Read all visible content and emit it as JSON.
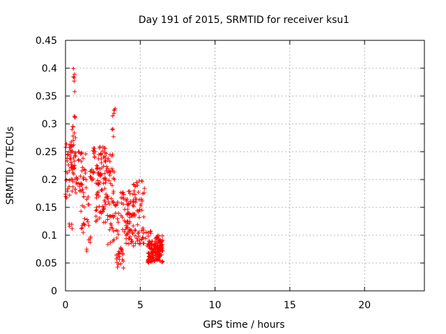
{
  "chart_data": {
    "type": "scatter",
    "title": "Day 191 of 2015, SRMTID for receiver ksu1",
    "xlabel": "GPS time / hours",
    "ylabel": "SRMTID / TECUs",
    "xlim": [
      0,
      24
    ],
    "ylim": [
      0,
      0.45
    ],
    "xticks": [
      0,
      5,
      10,
      15,
      20
    ],
    "yticks": [
      0,
      0.05,
      0.1,
      0.15,
      0.2,
      0.25,
      0.3,
      0.35,
      0.4,
      0.45
    ],
    "grid": true,
    "marker": "plus",
    "color": "#ff0000",
    "clusters": [
      {
        "x_range": [
          0.0,
          0.6
        ],
        "y_range": [
          0.16,
          0.27
        ],
        "n": 45
      },
      {
        "x_range": [
          0.3,
          0.7
        ],
        "y_range": [
          0.24,
          0.3
        ],
        "n": 15
      },
      {
        "x_range": [
          0.5,
          0.7
        ],
        "y_range": [
          0.35,
          0.41
        ],
        "n": 6
      },
      {
        "x_range": [
          0.5,
          0.7
        ],
        "y_range": [
          0.31,
          0.33
        ],
        "n": 3
      },
      {
        "x_range": [
          0.2,
          0.5
        ],
        "y_range": [
          0.11,
          0.13
        ],
        "n": 4
      },
      {
        "x_range": [
          0.6,
          1.4
        ],
        "y_range": [
          0.17,
          0.25
        ],
        "n": 45
      },
      {
        "x_range": [
          1.0,
          1.6
        ],
        "y_range": [
          0.1,
          0.17
        ],
        "n": 20
      },
      {
        "x_range": [
          1.4,
          1.8
        ],
        "y_range": [
          0.07,
          0.1
        ],
        "n": 6
      },
      {
        "x_range": [
          1.6,
          2.4
        ],
        "y_range": [
          0.19,
          0.26
        ],
        "n": 45
      },
      {
        "x_range": [
          2.0,
          2.8
        ],
        "y_range": [
          0.12,
          0.22
        ],
        "n": 45
      },
      {
        "x_range": [
          2.3,
          2.8
        ],
        "y_range": [
          0.22,
          0.26
        ],
        "n": 12
      },
      {
        "x_range": [
          2.6,
          3.3
        ],
        "y_range": [
          0.15,
          0.25
        ],
        "n": 35
      },
      {
        "x_range": [
          3.1,
          3.4
        ],
        "y_range": [
          0.27,
          0.33
        ],
        "n": 8
      },
      {
        "x_range": [
          2.8,
          3.6
        ],
        "y_range": [
          0.08,
          0.16
        ],
        "n": 35
      },
      {
        "x_range": [
          3.4,
          3.9
        ],
        "y_range": [
          0.04,
          0.08
        ],
        "n": 25
      },
      {
        "x_range": [
          3.7,
          4.4
        ],
        "y_range": [
          0.1,
          0.18
        ],
        "n": 40
      },
      {
        "x_range": [
          4.0,
          4.7
        ],
        "y_range": [
          0.08,
          0.14
        ],
        "n": 35
      },
      {
        "x_range": [
          4.5,
          5.3
        ],
        "y_range": [
          0.13,
          0.2
        ],
        "n": 40
      },
      {
        "x_range": [
          4.6,
          5.2
        ],
        "y_range": [
          0.08,
          0.12
        ],
        "n": 15
      },
      {
        "x_range": [
          5.2,
          5.8
        ],
        "y_range": [
          0.08,
          0.11
        ],
        "n": 15
      },
      {
        "x_range": [
          5.5,
          6.5
        ],
        "y_range": [
          0.05,
          0.09
        ],
        "n": 120
      },
      {
        "x_range": [
          6.0,
          6.5
        ],
        "y_range": [
          0.07,
          0.1
        ],
        "n": 40
      }
    ]
  }
}
